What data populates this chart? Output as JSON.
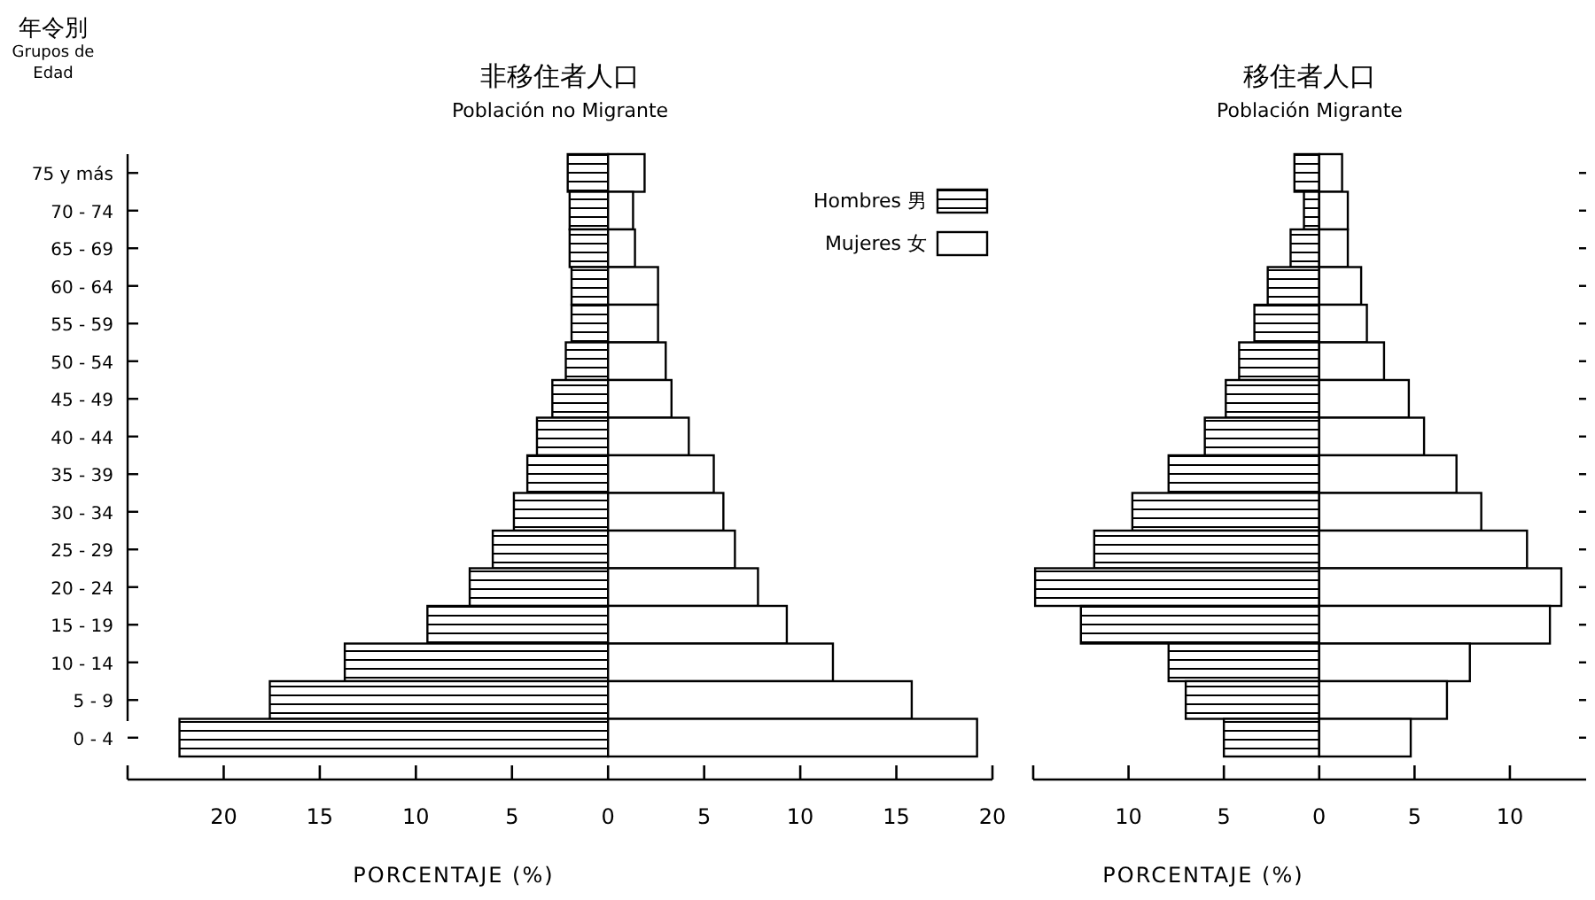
{
  "chart_data": [
    {
      "type": "bar",
      "orientation": "horizontal",
      "title": "非移住者人口",
      "subtitle": "Población no Migrante",
      "xlabel": "PORCENTAJE (%)",
      "ylabel": "年令別\nGrupos de\nEdad",
      "categories": [
        "75 y más",
        "70 - 74",
        "65 - 69",
        "60 - 64",
        "55 - 59",
        "50 - 54",
        "45 - 49",
        "40 - 44",
        "35 - 39",
        "30 - 34",
        "25 - 29",
        "20 - 24",
        "15 - 19",
        "10 - 14",
        "5 - 9",
        "0 - 4"
      ],
      "series": [
        {
          "name": "Hombres 男",
          "color": "#000000",
          "values": [
            -2.1,
            -2.0,
            -2.0,
            -1.9,
            -1.9,
            -2.2,
            -2.9,
            -3.7,
            -4.2,
            -4.9,
            -6.0,
            -7.2,
            -9.4,
            -13.7,
            -17.6,
            -22.3
          ]
        },
        {
          "name": "Mujeres 女",
          "color": "#ffffff",
          "values": [
            1.9,
            1.3,
            1.4,
            2.6,
            2.6,
            3.0,
            3.3,
            4.2,
            5.5,
            6.0,
            6.6,
            7.8,
            9.3,
            11.7,
            15.8,
            19.2
          ]
        }
      ],
      "xlim": [
        -25,
        20
      ],
      "xticks": [
        {
          "value": -25,
          "label": null
        },
        {
          "value": -20,
          "label": "20"
        },
        {
          "value": -15,
          "label": "15"
        },
        {
          "value": -10,
          "label": "10"
        },
        {
          "value": -5,
          "label": "5"
        },
        0,
        5,
        10,
        15,
        20
      ],
      "legend": "top right",
      "grid": false,
      "stacked": true
    },
    {
      "type": "bar",
      "orientation": "horizontal",
      "title": "移住者人口",
      "subtitle": "Población Migrante",
      "xlabel": "PORCENTAJE (%)",
      "categories": [
        null,
        null,
        null,
        null,
        null,
        null,
        null,
        null,
        null,
        null,
        null,
        null,
        null,
        null,
        null,
        null
      ],
      "series": [
        {
          "color": "#000000",
          "values": [
            -1.3,
            -0.8,
            -1.5,
            -2.7,
            -3.4,
            -4.2,
            -4.9,
            -6.0,
            -7.9,
            -9.8,
            -11.8,
            -14.9,
            -12.5,
            -7.9,
            -7.0,
            -5.0
          ]
        },
        {
          "color": "#ffffff",
          "values": [
            1.2,
            1.5,
            1.5,
            2.2,
            2.5,
            3.4,
            4.7,
            5.5,
            7.2,
            8.5,
            10.9,
            12.7,
            12.1,
            7.9,
            6.7,
            4.8
          ]
        }
      ],
      "xlim": [
        -15,
        14
      ],
      "xticks": [
        {
          "value": -15,
          "label": null
        },
        {
          "value": -10,
          "label": "10"
        },
        {
          "value": -5,
          "label": "5"
        },
        0,
        5,
        10
      ],
      "tick_labels": "x",
      "grid": false,
      "stacked": true
    }
  ]
}
